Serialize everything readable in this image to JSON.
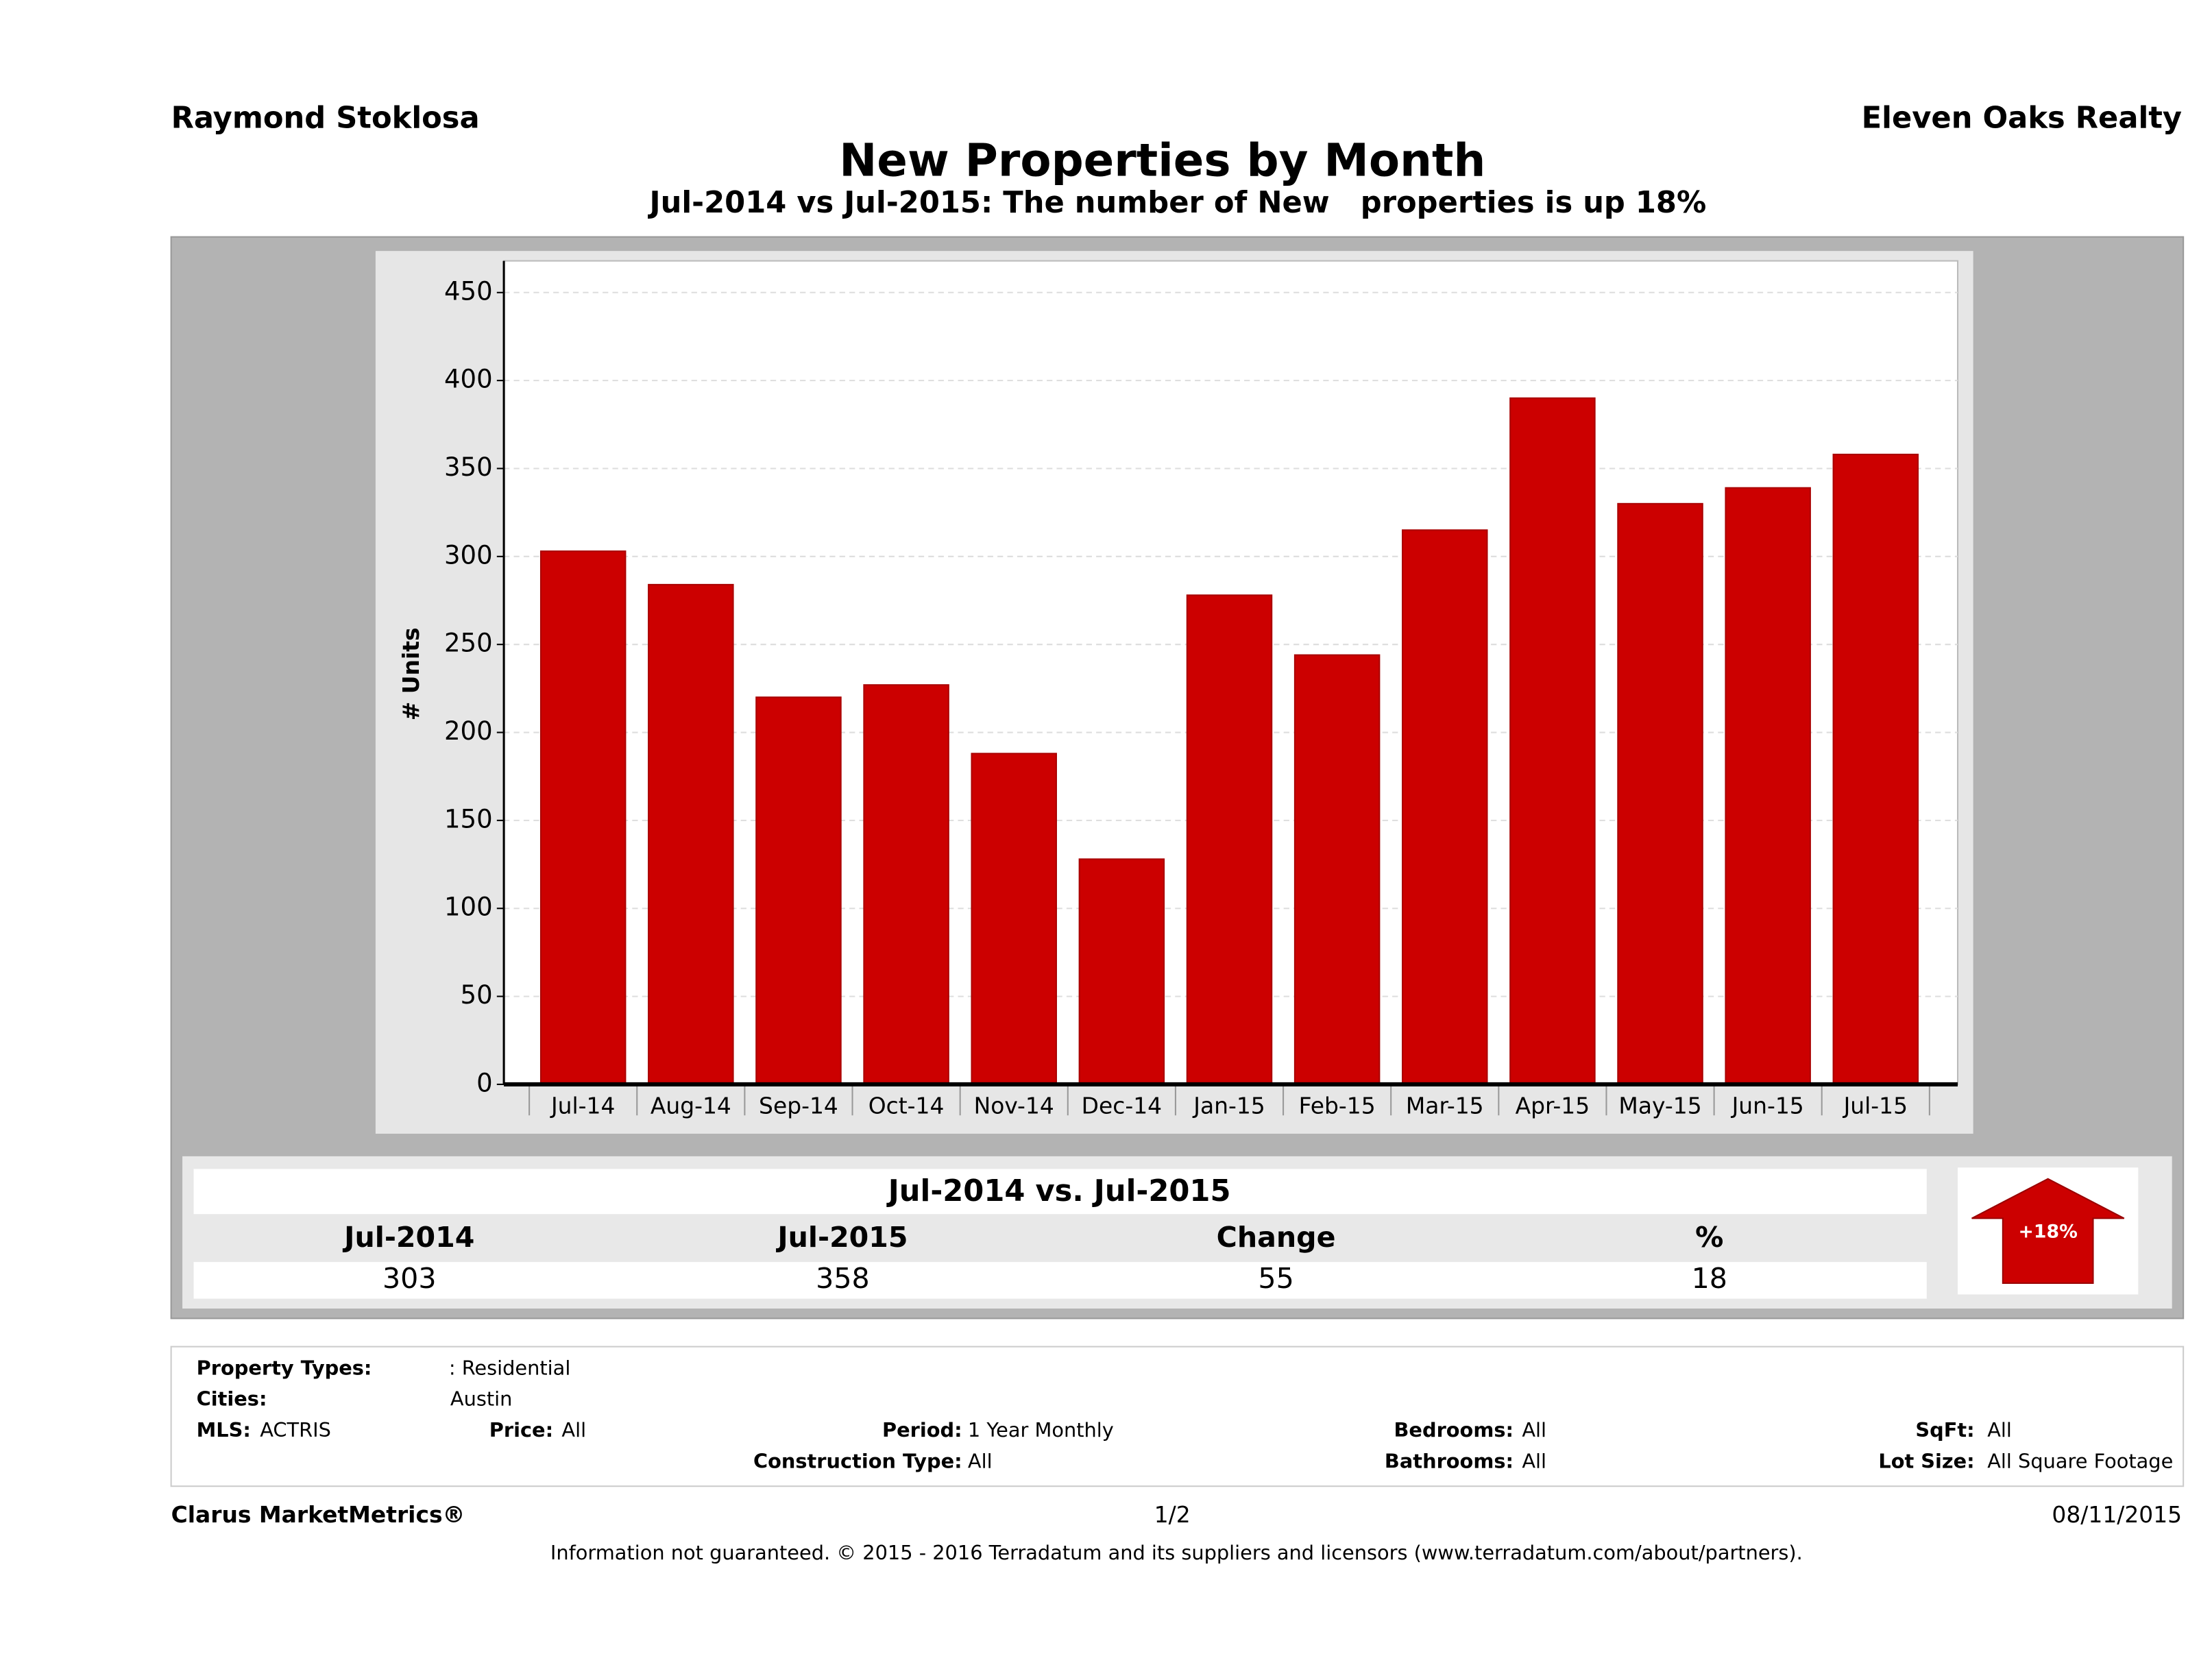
{
  "header": {
    "left": "Raymond Stoklosa",
    "right": "Eleven Oaks Realty"
  },
  "chart_data": {
    "type": "bar",
    "title": "New Properties by Month",
    "subtitle": "Jul-2014 vs Jul-2015: The number of New   properties is up 18%",
    "y_label": "# Units",
    "categories": [
      "Jul-14",
      "Aug-14",
      "Sep-14",
      "Oct-14",
      "Nov-14",
      "Dec-14",
      "Jan-15",
      "Feb-15",
      "Mar-15",
      "Apr-15",
      "May-15",
      "Jun-15",
      "Jul-15"
    ],
    "values": [
      303,
      284,
      220,
      227,
      188,
      128,
      278,
      244,
      315,
      390,
      330,
      339,
      358
    ],
    "color": "#cc0000",
    "ylim": [
      0,
      468
    ],
    "yticks": [
      0,
      50,
      100,
      150,
      200,
      250,
      300,
      350,
      400,
      450
    ],
    "grid": true
  },
  "summary": {
    "title": "Jul-2014 vs. Jul-2015",
    "columns": [
      "Jul-2014",
      "Jul-2015",
      "Change",
      "%"
    ],
    "values": [
      303,
      358,
      55,
      18
    ],
    "badge": "+18%"
  },
  "filters": [
    {
      "label": "Property Types:",
      "value": ": Residential"
    },
    {
      "label": "Cities:",
      "value": "Austin"
    },
    {
      "label": "MLS:",
      "value": "ACTRIS"
    },
    {
      "label": "Price:",
      "value": "All"
    },
    {
      "label": "Period:",
      "value": "1 Year Monthly"
    },
    {
      "label": "Bedrooms:",
      "value": "All"
    },
    {
      "label": "SqFt:",
      "value": "All"
    },
    {
      "label": "Construction Type:",
      "value": "All"
    },
    {
      "label": "Bathrooms:",
      "value": "All"
    },
    {
      "label": "Lot Size:",
      "value": "All Square Footage"
    }
  ],
  "footer": {
    "brand": "Clarus MarketMetrics®",
    "page": "1/2",
    "date": "08/11/2015",
    "disclaimer": "Information not guaranteed. © 2015 - 2016 Terradatum and its suppliers and licensors (www.terradatum.com/about/partners)."
  }
}
